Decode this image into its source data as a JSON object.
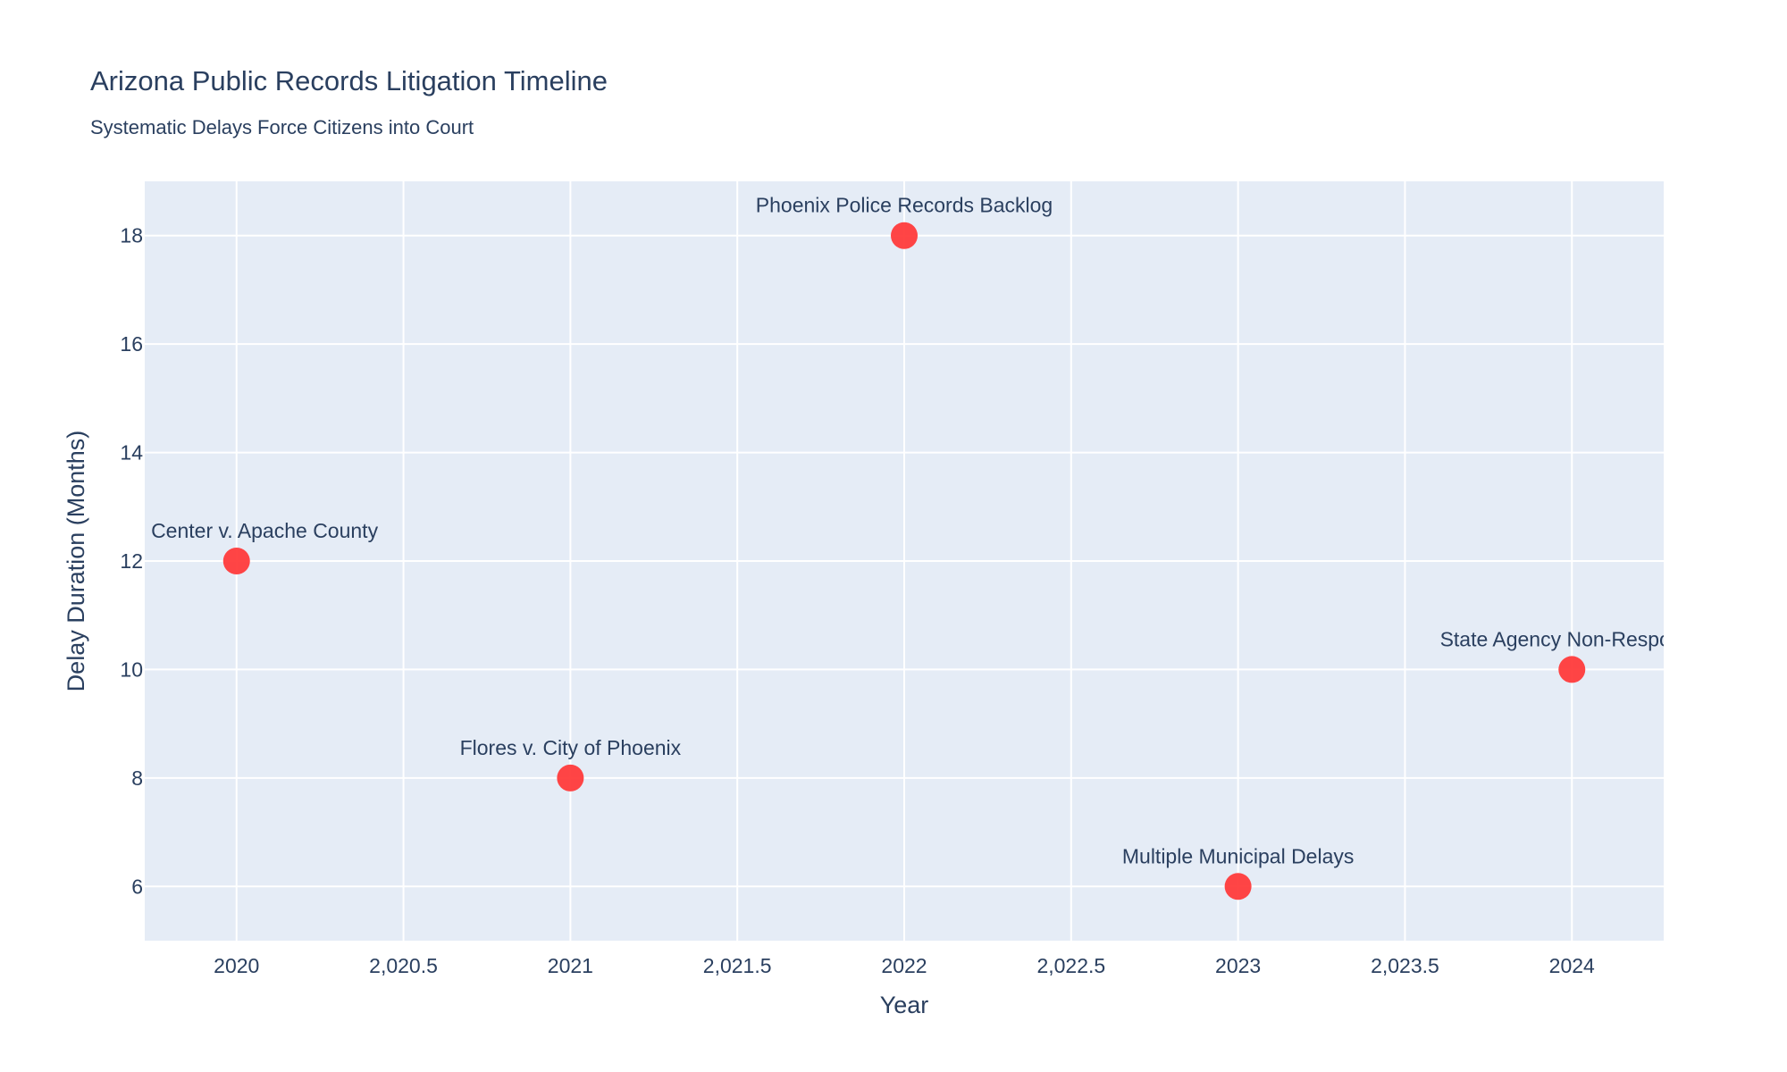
{
  "chart_data": {
    "type": "scatter",
    "title": "Arizona Public Records Litigation Timeline",
    "subtitle": "Systematic Delays Force Citizens into Court",
    "xlabel": "Year",
    "ylabel": "Delay Duration (Months)",
    "xlim": [
      2019.725,
      2024.275
    ],
    "ylim": [
      5.0,
      19.0
    ],
    "xticks": [
      2020,
      2020.5,
      2021,
      2021.5,
      2022,
      2022.5,
      2023,
      2023.5,
      2024
    ],
    "xtick_labels": [
      "2020",
      "2,020.5",
      "2021",
      "2,021.5",
      "2022",
      "2,022.5",
      "2023",
      "2,023.5",
      "2024"
    ],
    "yticks": [
      6,
      8,
      10,
      12,
      14,
      16,
      18
    ],
    "ytick_labels": [
      "6",
      "8",
      "10",
      "12",
      "14",
      "16",
      "18"
    ],
    "grid": true,
    "marker_color": "#ff3b3b",
    "plot_bgcolor": "#e5ecf6",
    "points": [
      {
        "x": 2020,
        "y": 12,
        "label": "Legal Center v. Apache County"
      },
      {
        "x": 2021,
        "y": 8,
        "label": "Flores v. City of Phoenix"
      },
      {
        "x": 2022,
        "y": 18,
        "label": "Phoenix Police Records Backlog"
      },
      {
        "x": 2023,
        "y": 6,
        "label": "Multiple Municipal Delays"
      },
      {
        "x": 2024,
        "y": 10,
        "label": "State Agency Non-Response"
      }
    ]
  }
}
